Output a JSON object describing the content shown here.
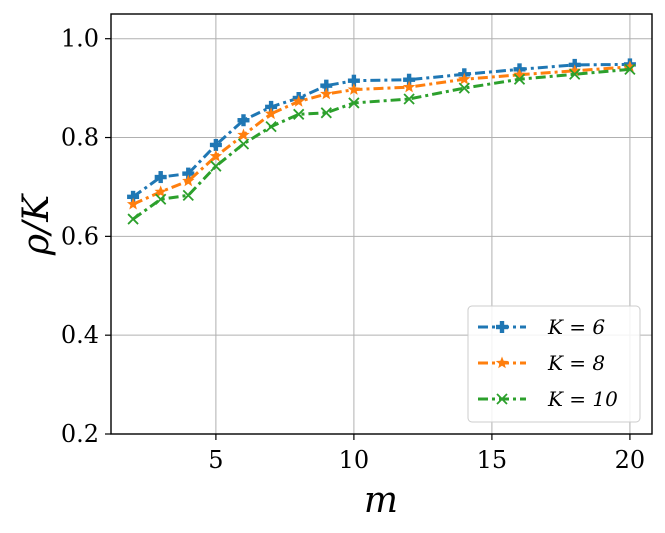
{
  "chart_data": {
    "type": "line",
    "xlabel": "m",
    "ylabel": "ρ/K",
    "xlim": [
      1.2,
      20.8
    ],
    "ylim": [
      0.2,
      1.05
    ],
    "xticks": [
      5,
      10,
      15,
      20
    ],
    "yticks": [
      0.2,
      0.4,
      0.6,
      0.8,
      1.0
    ],
    "xtick_labels": [
      "5",
      "10",
      "15",
      "20"
    ],
    "ytick_labels": [
      "0.2",
      "0.4",
      "0.6",
      "0.8",
      "1.0"
    ],
    "grid": true,
    "legend_position": "lower-right",
    "x": [
      2,
      3,
      4,
      5,
      6,
      7,
      8,
      9,
      10,
      12,
      14,
      16,
      18,
      20
    ],
    "series": [
      {
        "name": "K = 6",
        "color": "#1f77b4",
        "marker": "plus",
        "values": [
          0.68,
          0.72,
          0.727,
          0.785,
          0.835,
          0.862,
          0.88,
          0.905,
          0.915,
          0.917,
          0.928,
          0.938,
          0.947,
          0.948
        ]
      },
      {
        "name": "K = 8",
        "color": "#ff7f0e",
        "marker": "star",
        "values": [
          0.665,
          0.69,
          0.712,
          0.762,
          0.805,
          0.848,
          0.873,
          0.888,
          0.897,
          0.902,
          0.918,
          0.927,
          0.935,
          0.943
        ]
      },
      {
        "name": "K = 10",
        "color": "#2ca02c",
        "marker": "x",
        "values": [
          0.635,
          0.675,
          0.683,
          0.742,
          0.787,
          0.822,
          0.847,
          0.85,
          0.87,
          0.878,
          0.9,
          0.918,
          0.928,
          0.938
        ]
      }
    ]
  }
}
